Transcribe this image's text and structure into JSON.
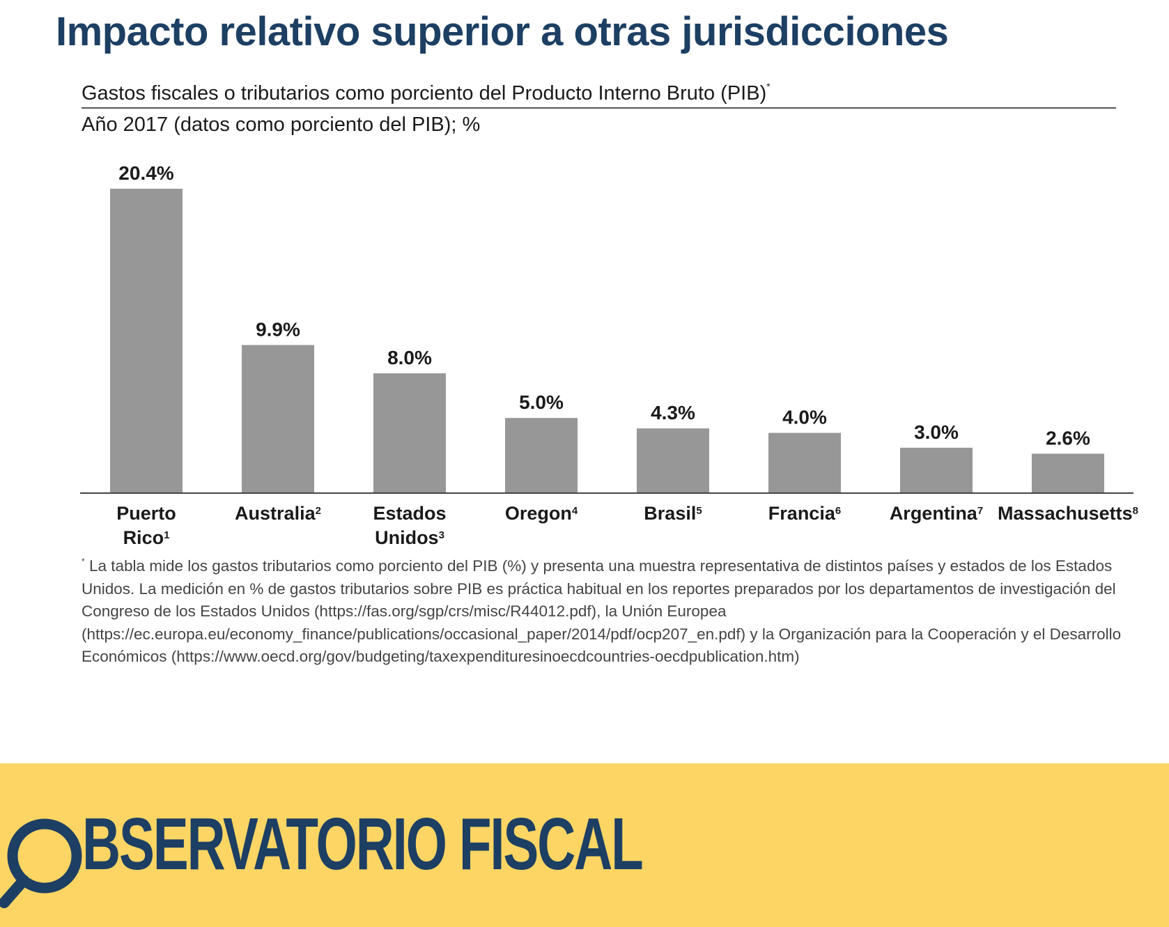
{
  "header": {
    "title": "Impacto relativo superior a otras jurisdicciones"
  },
  "chart": {
    "subtitle_main": "Gastos fiscales o tributarios como porciento del Producto Interno Bruto (PIB)",
    "subtitle_mark": "*",
    "subtitle_year": "Año 2017 (datos como porciento del PIB); %"
  },
  "chart_data": {
    "type": "bar",
    "title": "Gastos fiscales o tributarios como porciento del Producto Interno Bruto (PIB)*",
    "subtitle": "Año 2017 (datos como porciento del PIB); %",
    "categories": [
      {
        "name": "Puerto Rico",
        "sup": "1"
      },
      {
        "name": "Australia",
        "sup": "2"
      },
      {
        "name": "Estados Unidos",
        "sup": "3"
      },
      {
        "name": "Oregon",
        "sup": "4"
      },
      {
        "name": "Brasil",
        "sup": "5"
      },
      {
        "name": "Francia",
        "sup": "6"
      },
      {
        "name": "Argentina",
        "sup": "7"
      },
      {
        "name": "Massachusetts",
        "sup": "8"
      }
    ],
    "values": [
      20.4,
      9.9,
      8.0,
      5.0,
      4.3,
      4.0,
      3.0,
      2.6
    ],
    "value_labels": [
      "20.4%",
      "9.9%",
      "8.0%",
      "5.0%",
      "4.3%",
      "4.0%",
      "3.0%",
      "2.6%"
    ],
    "ylim": [
      0,
      20.4
    ],
    "grid": false,
    "bar_color": "#979797"
  },
  "note": {
    "mark": "*",
    "text": "La tabla mide los gastos tributarios como porciento del PIB (%) y presenta una muestra representativa de distintos países y estados de los Estados Unidos. La medición en % de gastos tributarios sobre PIB es práctica habitual en los reportes preparados por los departamentos de investigación del Congreso de los Estados Unidos (https://fas.org/sgp/crs/misc/R44012.pdf), la Unión Europea (https://ec.europa.eu/economy_finance/publications/occasional_paper/2014/pdf/ocp207_en.pdf) y la Organización para la Cooperación y el Desarrollo Económicos (https://www.oecd.org/gov/budgeting/taxexpendituresinoecdcountries-oecdpublication.htm)"
  },
  "footer": {
    "logo_text": "BSERVATORIO FISCAL",
    "logo_icon": "magnifying-glass-icon",
    "background": "#fcd564",
    "brand_color": "#1d3f63"
  }
}
